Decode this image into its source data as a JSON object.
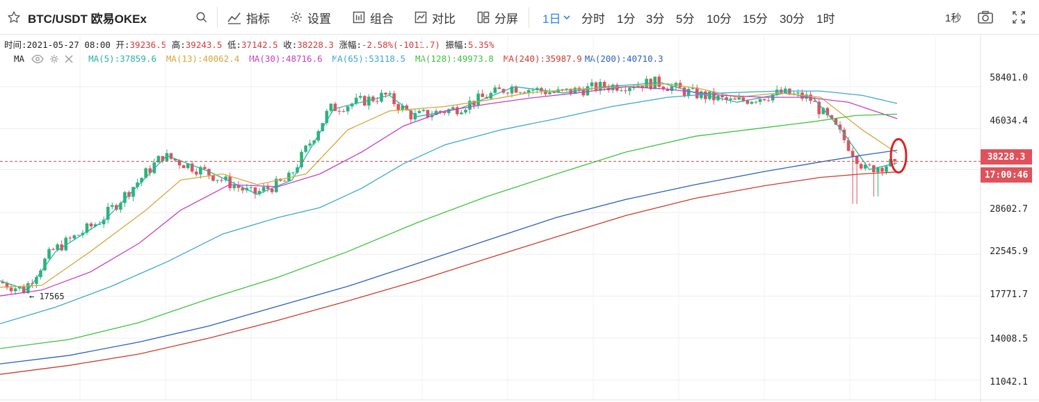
{
  "toolbar": {
    "symbol": "BTC/USDT 欧易OKEx",
    "indicators_label": "指标",
    "settings_label": "设置",
    "combo_label": "组合",
    "compare_label": "对比",
    "split_label": "分屏",
    "active_timeframe": "1日",
    "timeframes": [
      "分时",
      "1分",
      "3分",
      "5分",
      "10分",
      "15分",
      "30分",
      "1时"
    ],
    "refresh_rate": "1秒"
  },
  "ohlc": {
    "time_label": "时间:",
    "time_value": "2021-05-27 08:00",
    "open_label": "开:",
    "open_value": "39236.5",
    "high_label": "高:",
    "high_value": "39243.5",
    "low_label": "低:",
    "low_value": "37142.5",
    "close_label": "收:",
    "close_value": "38228.3",
    "change_label": "涨幅:",
    "change_value": "-2.58%(-1011.7)",
    "amp_label": "振幅:",
    "amp_value": "5.35%"
  },
  "ma_bar": {
    "label": "MA",
    "items": [
      {
        "text": "MA(5):37859.6",
        "color": "#26b3a3"
      },
      {
        "text": "MA(13):40062.4",
        "color": "#d4a83a"
      },
      {
        "text": "MA(30):48716.6",
        "color": "#c93cc5"
      },
      {
        "text": "MA(65):53118.5",
        "color": "#3aa8d0"
      },
      {
        "text": "MA(128):49973.8",
        "color": "#3cc43c"
      },
      {
        "text": "MA(240):35987.9",
        "color": "#d03a2c"
      },
      {
        "text": "MA(200):40710.3",
        "color": "#2a5fbf"
      }
    ]
  },
  "price_tags": {
    "last_price": "38228.3",
    "countdown": "17:00:46"
  },
  "low_marker": "← 17565",
  "y_axis_labels": [
    "58401.0",
    "46034.4",
    "28602.7",
    "22545.9",
    "17771.7",
    "14008.5",
    "11042.1"
  ],
  "colors": {
    "up": "#2bb27b",
    "down": "#e0525b",
    "accent": "#2f80ed",
    "highlight_circle": "#e02020"
  },
  "chart_data": {
    "type": "candlestick",
    "y_scale": "log",
    "ylim": [
      9900,
      66500
    ],
    "last_price": 38228.3,
    "ma_lines": [
      {
        "name": "MA(5)",
        "color": "#26b3a3",
        "points": [
          [
            0,
            19400
          ],
          [
            40,
            18400
          ],
          [
            80,
            22900
          ],
          [
            150,
            27300
          ],
          [
            240,
            39500
          ],
          [
            300,
            36100
          ],
          [
            370,
            31700
          ],
          [
            420,
            34400
          ],
          [
            480,
            51500
          ],
          [
            560,
            55600
          ],
          [
            600,
            49300
          ],
          [
            660,
            51500
          ],
          [
            740,
            58400
          ],
          [
            810,
            56400
          ],
          [
            870,
            58400
          ],
          [
            950,
            59800
          ],
          [
            1000,
            56400
          ],
          [
            1060,
            53500
          ],
          [
            1130,
            56400
          ],
          [
            1170,
            54700
          ],
          [
            1210,
            45700
          ],
          [
            1250,
            36500
          ],
          [
            1290,
            37860
          ]
        ]
      },
      {
        "name": "MA(13)",
        "color": "#d4a83a",
        "points": [
          [
            0,
            18700
          ],
          [
            60,
            18900
          ],
          [
            130,
            22900
          ],
          [
            210,
            29000
          ],
          [
            260,
            34400
          ],
          [
            320,
            35600
          ],
          [
            370,
            33500
          ],
          [
            440,
            35600
          ],
          [
            500,
            45700
          ],
          [
            560,
            50900
          ],
          [
            640,
            52200
          ],
          [
            700,
            54100
          ],
          [
            760,
            56400
          ],
          [
            830,
            57600
          ],
          [
            900,
            58400
          ],
          [
            960,
            59400
          ],
          [
            1010,
            57600
          ],
          [
            1060,
            55000
          ],
          [
            1120,
            56400
          ],
          [
            1180,
            55000
          ],
          [
            1240,
            45700
          ],
          [
            1290,
            40062
          ]
        ]
      },
      {
        "name": "MA(30)",
        "color": "#c93cc5",
        "points": [
          [
            0,
            17800
          ],
          [
            60,
            18400
          ],
          [
            130,
            20400
          ],
          [
            200,
            24000
          ],
          [
            260,
            29000
          ],
          [
            330,
            33500
          ],
          [
            400,
            33100
          ],
          [
            460,
            35600
          ],
          [
            520,
            40300
          ],
          [
            580,
            46700
          ],
          [
            640,
            50900
          ],
          [
            700,
            52900
          ],
          [
            760,
            54700
          ],
          [
            830,
            56400
          ],
          [
            900,
            58400
          ],
          [
            960,
            57600
          ],
          [
            1040,
            55600
          ],
          [
            1100,
            55000
          ],
          [
            1160,
            55000
          ],
          [
            1220,
            53500
          ],
          [
            1290,
            48717
          ]
        ]
      },
      {
        "name": "MA(65)",
        "color": "#3aa8d0",
        "points": [
          [
            0,
            15200
          ],
          [
            80,
            16700
          ],
          [
            160,
            18800
          ],
          [
            240,
            21600
          ],
          [
            320,
            25300
          ],
          [
            400,
            27800
          ],
          [
            460,
            29400
          ],
          [
            520,
            32800
          ],
          [
            580,
            37700
          ],
          [
            640,
            42000
          ],
          [
            720,
            45700
          ],
          [
            800,
            48700
          ],
          [
            880,
            52200
          ],
          [
            960,
            55000
          ],
          [
            1040,
            56400
          ],
          [
            1120,
            57000
          ],
          [
            1180,
            57000
          ],
          [
            1240,
            55600
          ],
          [
            1290,
            53118
          ]
        ]
      },
      {
        "name": "MA(128)",
        "color": "#3cc43c",
        "points": [
          [
            0,
            13200
          ],
          [
            100,
            13900
          ],
          [
            200,
            15300
          ],
          [
            300,
            17500
          ],
          [
            400,
            19800
          ],
          [
            500,
            22900
          ],
          [
            600,
            27000
          ],
          [
            700,
            31300
          ],
          [
            800,
            35600
          ],
          [
            900,
            40300
          ],
          [
            1000,
            44100
          ],
          [
            1100,
            46300
          ],
          [
            1170,
            47900
          ],
          [
            1230,
            49600
          ],
          [
            1290,
            49974
          ]
        ]
      },
      {
        "name": "MA(200)",
        "color": "#2a5fbf",
        "points": [
          [
            0,
            12100
          ],
          [
            100,
            12700
          ],
          [
            200,
            13700
          ],
          [
            300,
            15000
          ],
          [
            400,
            16800
          ],
          [
            500,
            18800
          ],
          [
            600,
            21400
          ],
          [
            700,
            24400
          ],
          [
            800,
            27800
          ],
          [
            900,
            30800
          ],
          [
            1000,
            33500
          ],
          [
            1100,
            36100
          ],
          [
            1180,
            38100
          ],
          [
            1240,
            39600
          ],
          [
            1290,
            40710
          ]
        ]
      },
      {
        "name": "MA(240)",
        "color": "#d03a2c",
        "points": [
          [
            0,
            11400
          ],
          [
            100,
            12000
          ],
          [
            200,
            12800
          ],
          [
            300,
            14000
          ],
          [
            400,
            15500
          ],
          [
            500,
            17300
          ],
          [
            600,
            19400
          ],
          [
            700,
            22000
          ],
          [
            800,
            24900
          ],
          [
            900,
            28100
          ],
          [
            1000,
            31000
          ],
          [
            1100,
            33300
          ],
          [
            1180,
            34900
          ],
          [
            1240,
            35600
          ],
          [
            1290,
            35988
          ]
        ]
      }
    ]
  }
}
